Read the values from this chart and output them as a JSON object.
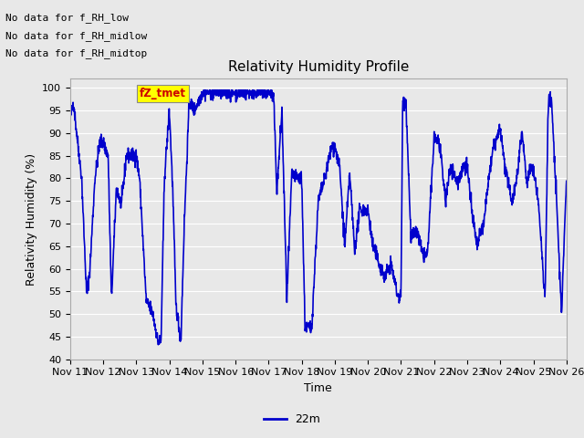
{
  "title": "Relativity Humidity Profile",
  "xlabel": "Time",
  "ylabel": "Relativity Humidity (%)",
  "ylim": [
    40,
    102
  ],
  "yticks": [
    40,
    45,
    50,
    55,
    60,
    65,
    70,
    75,
    80,
    85,
    90,
    95,
    100
  ],
  "xtick_labels": [
    "Nov 11",
    "Nov 12",
    "Nov 13",
    "Nov 14",
    "Nov 15",
    "Nov 16",
    "Nov 17",
    "Nov 18",
    "Nov 19",
    "Nov 20",
    "Nov 21",
    "Nov 22",
    "Nov 23",
    "Nov 24",
    "Nov 25",
    "Nov 26"
  ],
  "line_color": "#0000cc",
  "line_width": 1.2,
  "bg_color": "#e8e8e8",
  "plot_bg_color": "#e8e8e8",
  "legend_label": "22m",
  "annotations": [
    "No data for f_RH_low",
    "No data for f_RH_midlow",
    "No data for f_RH_midtop"
  ],
  "tooltip_text": "fZ_tmet",
  "tooltip_bg": "#ffff00",
  "tooltip_fg": "#cc0000",
  "num_points": 2000
}
